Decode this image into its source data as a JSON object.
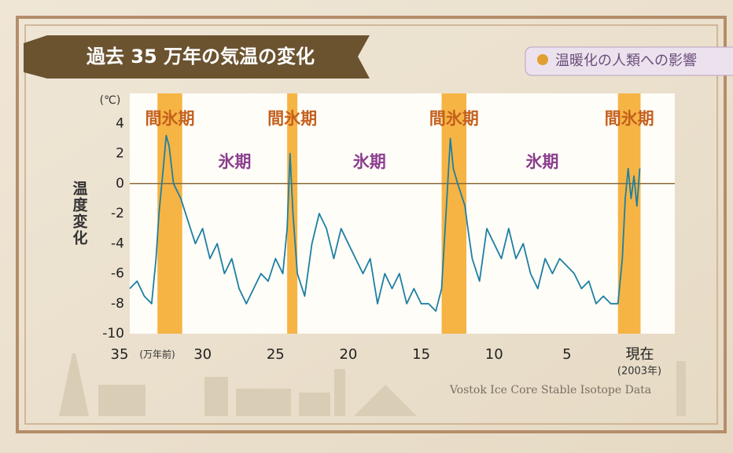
{
  "header": {
    "title": "過去 35 万年の気温の変化",
    "tag": "温暖化の人類への影響"
  },
  "chart_data": {
    "type": "line",
    "y_label": "温度変化",
    "y_unit": "(℃)",
    "x_unit_note": "(万年前)",
    "present_note": "(2003年)",
    "source": "Vostok Ice Core Stable Isotope Data",
    "xlim": [
      35,
      -2.4
    ],
    "xticks": [
      35,
      30,
      25,
      20,
      15,
      10,
      5,
      {
        "value": 0,
        "label": "現在"
      }
    ],
    "ylim": [
      -10,
      6
    ],
    "yticks": [
      -10,
      -8,
      -6,
      -4,
      -2,
      0,
      2,
      4
    ],
    "bands": [
      {
        "from": 33.1,
        "to": 31.4,
        "label": "間氷期"
      },
      {
        "from": 24.2,
        "to": 23.5,
        "label": "間氷期"
      },
      {
        "from": 13.6,
        "to": 11.9,
        "label": "間氷期"
      },
      {
        "from": 1.5,
        "to": -0.05,
        "label": "間氷期"
      }
    ],
    "band_color": "#f6b444",
    "glacial_labels": [
      "氷期",
      "氷期",
      "氷期"
    ],
    "series": [
      {
        "color": "#1d7fa3",
        "x": [
          35,
          34.5,
          34,
          33.5,
          33.2,
          33,
          32.7,
          32.5,
          32.3,
          32,
          31.5,
          31,
          30.5,
          30,
          29.5,
          29,
          28.5,
          28,
          27.5,
          27,
          26.5,
          26,
          25.5,
          25,
          24.5,
          24.2,
          24,
          23.8,
          23.5,
          23,
          22.5,
          22,
          21.5,
          21,
          20.5,
          20,
          19.5,
          19,
          18.5,
          18,
          17.5,
          17,
          16.5,
          16,
          15.5,
          15,
          14.5,
          14,
          13.6,
          13.3,
          13,
          12.8,
          12.5,
          12,
          11.8,
          11.5,
          11,
          10.5,
          10,
          9.5,
          9,
          8.5,
          8,
          7.5,
          7,
          6.5,
          6,
          5.5,
          5,
          4.5,
          4,
          3.5,
          3,
          2.5,
          2,
          1.5,
          1.2,
          1,
          0.8,
          0.6,
          0.4,
          0.2,
          0
        ],
        "values": [
          -7,
          -6.5,
          -7.5,
          -8,
          -5,
          -2,
          1,
          3.2,
          2.5,
          0,
          -1,
          -2.5,
          -4,
          -3,
          -5,
          -4,
          -6,
          -5,
          -7,
          -8,
          -7,
          -6,
          -6.5,
          -5,
          -6,
          -3,
          2,
          -2,
          -6,
          -7.5,
          -4,
          -2,
          -3,
          -5,
          -3,
          -4,
          -5,
          -6,
          -5,
          -8,
          -6,
          -7,
          -6,
          -8,
          -7,
          -8,
          -8,
          -8.5,
          -7,
          -2,
          3,
          1,
          0,
          -1.5,
          -3,
          -5,
          -6.5,
          -3,
          -4,
          -5,
          -3,
          -5,
          -4,
          -6,
          -7,
          -5,
          -6,
          -5,
          -5.5,
          -6,
          -7,
          -6.5,
          -8,
          -7.5,
          -8,
          -8,
          -5,
          -1,
          1,
          -1,
          0.5,
          -1.5,
          1
        ]
      }
    ]
  }
}
